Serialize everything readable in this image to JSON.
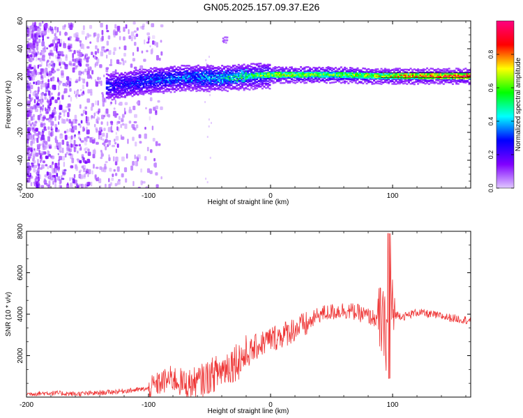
{
  "title": "GN05.2025.157.09.37.E26",
  "chart_data": [
    {
      "type": "heatmap",
      "xlabel": "Height of straight line (km)",
      "ylabel": "Frequency (Hz)",
      "xlim": [
        -200,
        164
      ],
      "ylim": [
        -60,
        60
      ],
      "x_ticks": [
        -200,
        -100,
        0,
        100
      ],
      "y_ticks": [
        60,
        40,
        20,
        0,
        -20,
        -40,
        -60
      ],
      "colorbar": {
        "label": "Normalized spectral amplitude",
        "range": [
          0,
          1
        ],
        "ticks": [
          "0.0",
          "0.2",
          "0.4",
          "0.6",
          "0.8"
        ],
        "colors": [
          "#e0c8ff",
          "#8000ff",
          "#0000ff",
          "#00ffff",
          "#00ff00",
          "#ffff00",
          "#ff0000",
          "#ff0080"
        ]
      },
      "noise_region_x": [
        -200,
        -100
      ],
      "ridge": {
        "description_values": [
          {
            "x": -130,
            "f": 14,
            "amp": 0.25
          },
          {
            "x": -100,
            "f": 18,
            "amp": 0.35
          },
          {
            "x": -70,
            "f": 20,
            "amp": 0.4
          },
          {
            "x": -40,
            "f": 20,
            "amp": 0.45
          },
          {
            "x": -20,
            "f": 21,
            "amp": 0.6
          },
          {
            "x": 0,
            "f": 22,
            "amp": 0.7
          },
          {
            "x": 50,
            "f": 22,
            "amp": 0.65
          },
          {
            "x": 90,
            "f": 21,
            "amp": 0.75
          },
          {
            "x": 120,
            "f": 21,
            "amp": 0.85
          },
          {
            "x": 164,
            "f": 21,
            "amp": 1.0
          }
        ]
      }
    },
    {
      "type": "line",
      "xlabel": "Height of straight line (km)",
      "ylabel": "SNR (10 * v/v)",
      "xlim": [
        -200,
        164
      ],
      "ylim": [
        0,
        8000
      ],
      "x_ticks": [
        -200,
        -100,
        0,
        100
      ],
      "y_ticks": [
        2000,
        4000,
        6000,
        8000
      ],
      "color": "#ee3333",
      "series": [
        {
          "x": [
            -200,
            -180,
            -160,
            -140,
            -120,
            -100,
            -90,
            -80,
            -70,
            -60,
            -50,
            -40,
            -30,
            -20,
            -10,
            0,
            10,
            20,
            30,
            40,
            50,
            60,
            70,
            80,
            90,
            95,
            97,
            100,
            110,
            120,
            130,
            140,
            150,
            164
          ],
          "values": [
            150,
            200,
            150,
            200,
            300,
            400,
            700,
            900,
            600,
            700,
            1000,
            1300,
            1700,
            2000,
            2500,
            2800,
            3000,
            3300,
            3500,
            4000,
            4100,
            4200,
            4100,
            3900,
            3700,
            3000,
            5500,
            4000,
            3900,
            4100,
            4000,
            3900,
            3800,
            3700
          ]
        }
      ]
    }
  ]
}
